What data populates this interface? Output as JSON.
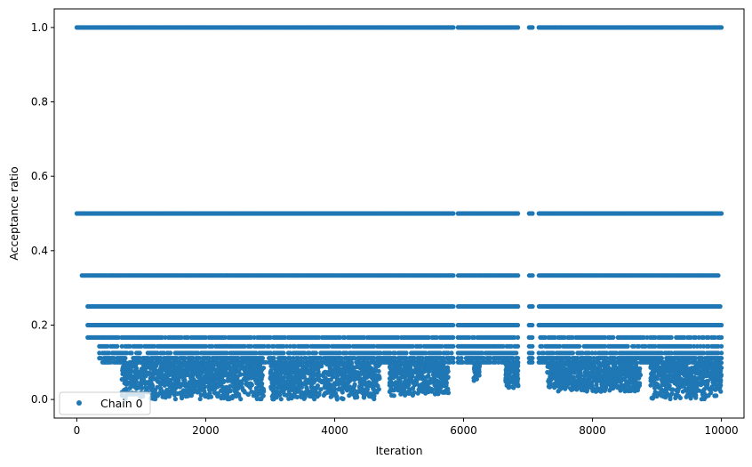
{
  "chart_data": {
    "type": "scatter",
    "xlabel": "Iteration",
    "ylabel": "Acceptance ratio",
    "xlim": [
      -350,
      10350
    ],
    "ylim": [
      -0.05,
      1.05
    ],
    "xticks": [
      0,
      2000,
      4000,
      6000,
      8000,
      10000
    ],
    "xtick_labels": [
      "0",
      "2000",
      "4000",
      "6000",
      "8000",
      "10000"
    ],
    "yticks": [
      0.0,
      0.2,
      0.4,
      0.6,
      0.8,
      1.0
    ],
    "ytick_labels": [
      "0.0",
      "0.2",
      "0.4",
      "0.6",
      "0.8",
      "1.0"
    ],
    "grid": false,
    "legend_position": "lower-left",
    "series_color": "#1f77b4",
    "series": [
      {
        "name": "Chain 0",
        "levels": [
          {
            "y": 1.0,
            "x_start": 0,
            "x_end": 10000
          },
          {
            "y": 0.5,
            "x_start": 0,
            "x_end": 10000
          },
          {
            "y": 0.3333,
            "x_start": 80,
            "x_end": 9950
          },
          {
            "y": 0.25,
            "x_start": 170,
            "x_end": 9980
          },
          {
            "y": 0.2,
            "x_start": 170,
            "x_end": 10000
          },
          {
            "y": 0.1667,
            "x_start": 170,
            "x_end": 10000
          },
          {
            "y": 0.1429,
            "x_start": 350,
            "x_end": 10000
          },
          {
            "y": 0.125,
            "x_start": 350,
            "x_end": 10000
          },
          {
            "y": 0.1111,
            "x_start": 350,
            "x_end": 10000
          },
          {
            "y": 0.1,
            "x_start": 400,
            "x_end": 10000
          }
        ],
        "gaps": [
          {
            "x_start": 5850,
            "x_end": 5900
          },
          {
            "x_start": 6850,
            "x_end": 7000
          },
          {
            "x_start": 7080,
            "x_end": 7150
          }
        ],
        "dense_low_regions": [
          {
            "x_start": 700,
            "x_end": 1550,
            "y_min": 0.0,
            "y_max": 0.1
          },
          {
            "x_start": 1550,
            "x_end": 2900,
            "y_min": 0.0,
            "y_max": 0.1
          },
          {
            "x_start": 3000,
            "x_end": 4700,
            "y_min": 0.0,
            "y_max": 0.1
          },
          {
            "x_start": 4850,
            "x_end": 5770,
            "y_min": 0.01,
            "y_max": 0.1
          },
          {
            "x_start": 6150,
            "x_end": 6250,
            "y_min": 0.05,
            "y_max": 0.1
          },
          {
            "x_start": 6650,
            "x_end": 6850,
            "y_min": 0.03,
            "y_max": 0.1
          },
          {
            "x_start": 7300,
            "x_end": 8750,
            "y_min": 0.02,
            "y_max": 0.1
          },
          {
            "x_start": 8900,
            "x_end": 10000,
            "y_min": 0.0,
            "y_max": 0.1
          }
        ]
      }
    ]
  }
}
